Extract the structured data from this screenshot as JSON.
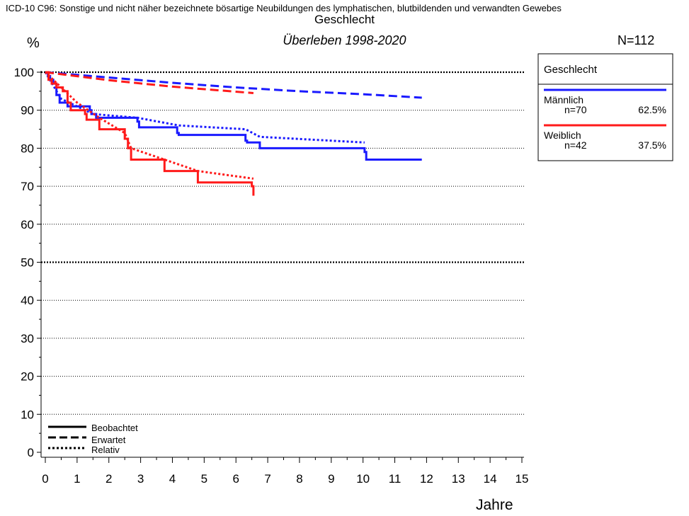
{
  "header": {
    "icd_line": "ICD-10 C96: Sonstige und nicht näher bezeichnete bösartige Neubildungen des lymphatischen, blutbildenden und verwandten Gewebes",
    "title": "Geschlecht",
    "subtitle": "Überleben 1998-2020",
    "n_total": "N=112"
  },
  "chart_data": {
    "type": "line",
    "title": "Geschlecht",
    "subtitle": "Überleben 1998-2020",
    "xlabel": "Jahre",
    "ylabel": "%",
    "xlim": [
      0,
      15
    ],
    "ylim": [
      0,
      100
    ],
    "x_ticks": [
      0,
      1,
      2,
      3,
      4,
      5,
      6,
      7,
      8,
      9,
      10,
      11,
      12,
      13,
      14,
      15
    ],
    "y_ticks": [
      0,
      10,
      20,
      30,
      40,
      50,
      60,
      70,
      80,
      90,
      100
    ],
    "grid": "horizontal dotted lines at every 10%, heavier at 50% and 100%",
    "legend": {
      "title": "Geschlecht",
      "placement": "top-right",
      "groups": [
        {
          "name": "Männlich",
          "n": "n=70",
          "pct": "62.5%",
          "color": "#1a1aff"
        },
        {
          "name": "Weiblich",
          "n": "n=42",
          "pct": "37.5%",
          "color": "#ff1a1a"
        }
      ]
    },
    "line_style_legend": {
      "placement": "bottom-left",
      "items": [
        {
          "label": "Beobachtet",
          "dash": "solid"
        },
        {
          "label": "Erwartet",
          "dash": "dashed"
        },
        {
          "label": "Relativ",
          "dash": "dotted"
        }
      ]
    },
    "series": [
      {
        "name": "Männlich",
        "kind": "Beobachtet",
        "color": "#1a1aff",
        "step": true,
        "points": [
          [
            0,
            100
          ],
          [
            0.08,
            99
          ],
          [
            0.15,
            98
          ],
          [
            0.25,
            97
          ],
          [
            0.35,
            94
          ],
          [
            0.45,
            92
          ],
          [
            0.7,
            91
          ],
          [
            1.4,
            90
          ],
          [
            1.45,
            89
          ],
          [
            1.6,
            88
          ],
          [
            2.9,
            87
          ],
          [
            2.95,
            85.5
          ],
          [
            4.15,
            84
          ],
          [
            4.2,
            83.5
          ],
          [
            6.3,
            82
          ],
          [
            6.35,
            81.5
          ],
          [
            6.75,
            80
          ],
          [
            10.05,
            79
          ],
          [
            10.1,
            77
          ],
          [
            11.85,
            77
          ]
        ]
      },
      {
        "name": "Männlich",
        "kind": "Erwartet",
        "color": "#1a1aff",
        "step": false,
        "points": [
          [
            0,
            100
          ],
          [
            2,
            98.6
          ],
          [
            4,
            97.2
          ],
          [
            6,
            96
          ],
          [
            8,
            95
          ],
          [
            10,
            94.2
          ],
          [
            11.85,
            93.3
          ]
        ]
      },
      {
        "name": "Männlich",
        "kind": "Relativ",
        "color": "#1a1aff",
        "step": false,
        "points": [
          [
            0,
            100
          ],
          [
            0.5,
            93
          ],
          [
            1,
            91
          ],
          [
            1.5,
            89
          ],
          [
            2.9,
            88
          ],
          [
            4.2,
            86
          ],
          [
            6.3,
            85
          ],
          [
            6.75,
            83
          ],
          [
            10.05,
            81.5
          ]
        ]
      },
      {
        "name": "Weiblich",
        "kind": "Beobachtet",
        "color": "#ff1a1a",
        "step": true,
        "points": [
          [
            0,
            100
          ],
          [
            0.1,
            98
          ],
          [
            0.2,
            97
          ],
          [
            0.35,
            96
          ],
          [
            0.55,
            95
          ],
          [
            0.7,
            92
          ],
          [
            0.8,
            90
          ],
          [
            1.25,
            89
          ],
          [
            1.3,
            87.5
          ],
          [
            1.7,
            85
          ],
          [
            2.5,
            82.5
          ],
          [
            2.6,
            80
          ],
          [
            2.7,
            77
          ],
          [
            3.75,
            74
          ],
          [
            4.8,
            71
          ],
          [
            6.5,
            70
          ],
          [
            6.55,
            67.5
          ]
        ]
      },
      {
        "name": "Weiblich",
        "kind": "Erwartet",
        "color": "#ff1a1a",
        "step": false,
        "points": [
          [
            0,
            100
          ],
          [
            2,
            97.9
          ],
          [
            4,
            96.2
          ],
          [
            6.55,
            94.5
          ]
        ]
      },
      {
        "name": "Weiblich",
        "kind": "Relativ",
        "color": "#ff1a1a",
        "step": false,
        "points": [
          [
            0,
            100
          ],
          [
            0.5,
            96
          ],
          [
            1,
            92
          ],
          [
            1.7,
            88
          ],
          [
            2.5,
            84
          ],
          [
            2.7,
            80
          ],
          [
            3.75,
            77
          ],
          [
            4.8,
            74
          ],
          [
            6.55,
            72
          ]
        ]
      }
    ]
  }
}
